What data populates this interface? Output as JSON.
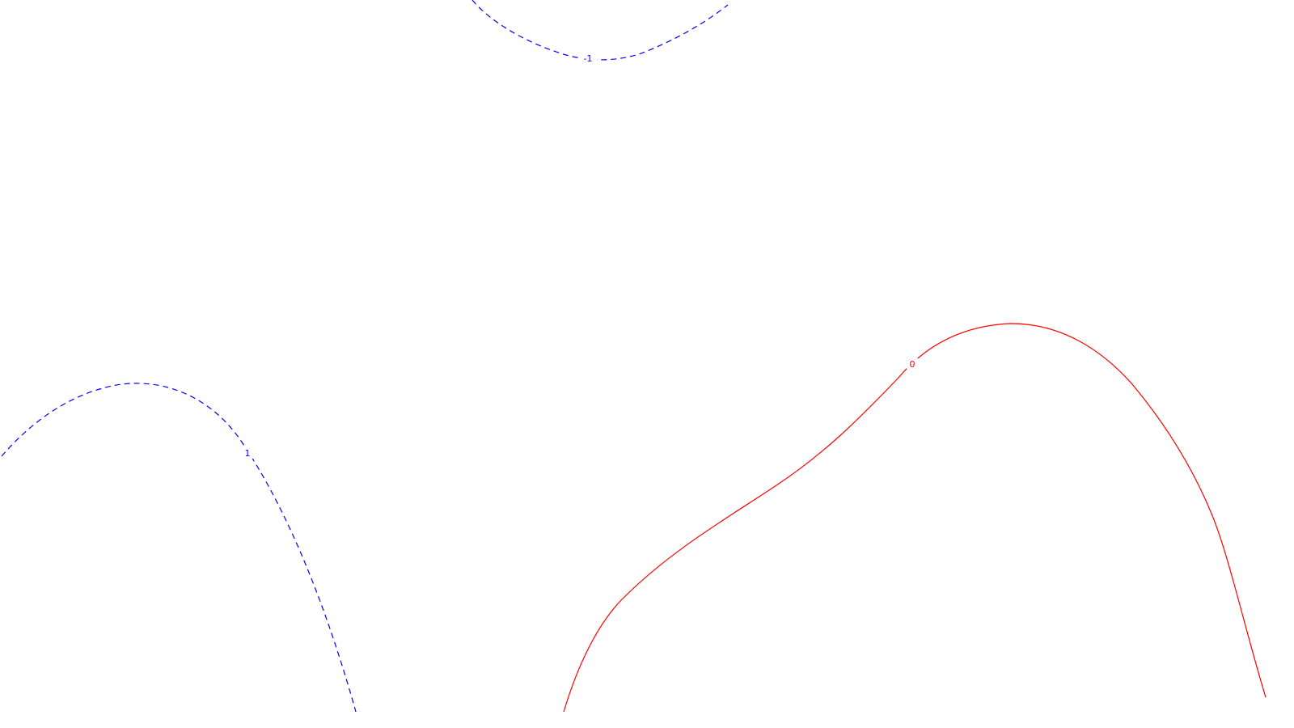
{
  "chart_data": {
    "type": "contour",
    "title": "",
    "xlabel": "",
    "ylabel": "",
    "grid": false,
    "legend": "none",
    "contours": [
      {
        "level": "-1",
        "label": "-1",
        "color": "#0000ff",
        "style": "dashed"
      },
      {
        "level": "1",
        "label": "1",
        "color": "#0000ff",
        "style": "dashed"
      },
      {
        "level": "0",
        "label": "0",
        "color": "#ff0000",
        "style": "solid"
      }
    ]
  }
}
